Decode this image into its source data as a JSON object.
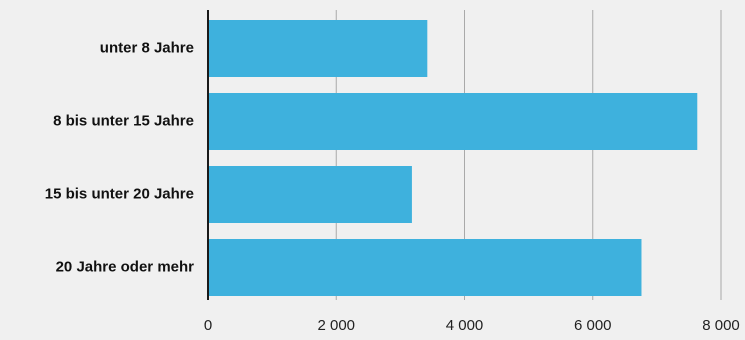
{
  "chart_data": {
    "type": "bar",
    "orientation": "horizontal",
    "categories": [
      "unter 8 Jahre",
      "8 bis unter 15 Jahre",
      "15 bis unter 20 Jahre",
      "20 Jahre oder mehr"
    ],
    "values": [
      3420,
      7630,
      3180,
      6760
    ],
    "xlim": [
      0,
      8000
    ],
    "x_ticks": [
      0,
      2000,
      4000,
      6000,
      8000
    ],
    "x_tick_labels": [
      "0",
      "2 000",
      "4 000",
      "6 000",
      "8 000"
    ],
    "grid": "vertical",
    "legend": "none"
  },
  "colors": {
    "background": "#f0f0f0",
    "bar": "#3eb1dd",
    "grid": "#a9a9a9",
    "axis": "#1a1a1a",
    "label_text": "#111111"
  }
}
